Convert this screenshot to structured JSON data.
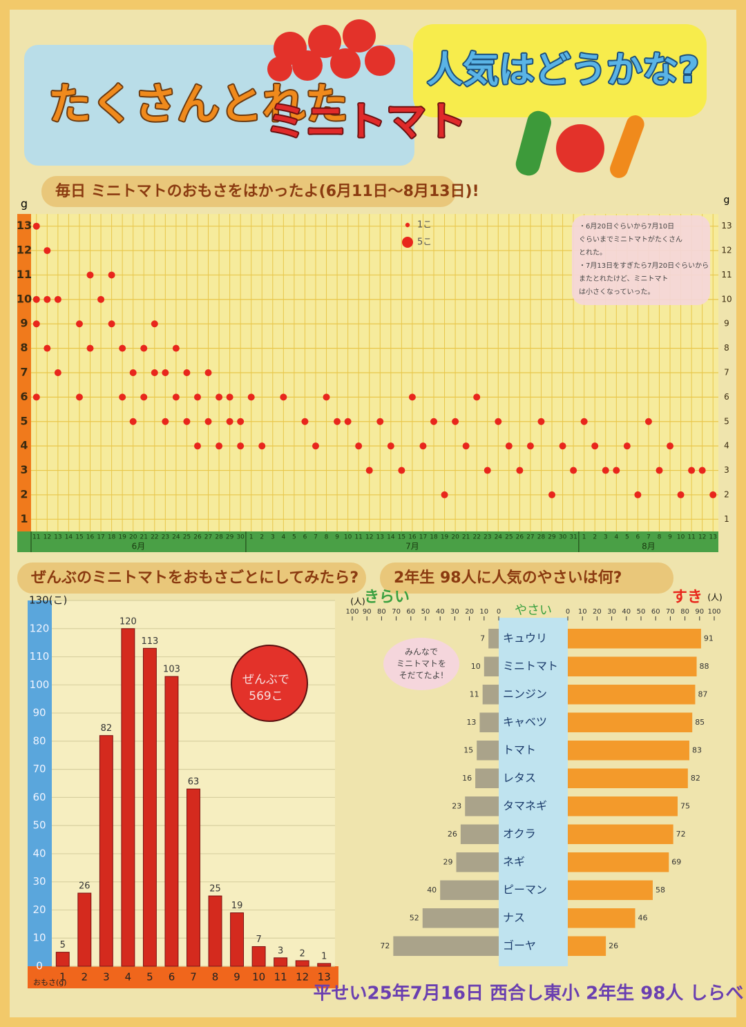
{
  "header": {
    "title1": "たくさんとれた",
    "title2": "ミニトマト",
    "title3": "人気はどうかな?"
  },
  "chart_data": [
    {
      "type": "scatter",
      "title": "毎日 ミニトマトのおもさをはかったよ(6月11日～8月13日)!",
      "y_unit": "g",
      "x": [
        1,
        1,
        1,
        1,
        2,
        2,
        2,
        3,
        3,
        5,
        5,
        6,
        6,
        7,
        8,
        8,
        9,
        9,
        10,
        10,
        11,
        11,
        12,
        12,
        13,
        13,
        14,
        14,
        15,
        15,
        16,
        16,
        17,
        17,
        18,
        18,
        19,
        19,
        20,
        20,
        21,
        22,
        24,
        26,
        27,
        28,
        29,
        30,
        31,
        32,
        33,
        34,
        35,
        36,
        37,
        38,
        39,
        40,
        41,
        42,
        43,
        44,
        45,
        46,
        47,
        48,
        49,
        50,
        51,
        52,
        53,
        54,
        55,
        56,
        57,
        58,
        59,
        60,
        61,
        62,
        63,
        64
      ],
      "y": [
        13,
        10,
        9,
        6,
        12,
        10,
        8,
        10,
        7,
        9,
        6,
        11,
        8,
        10,
        11,
        9,
        8,
        6,
        7,
        5,
        8,
        6,
        9,
        7,
        7,
        5,
        8,
        6,
        7,
        5,
        6,
        4,
        7,
        5,
        6,
        4,
        6,
        5,
        5,
        4,
        6,
        4,
        6,
        5,
        4,
        6,
        5,
        5,
        4,
        3,
        5,
        4,
        3,
        6,
        4,
        5,
        2,
        5,
        4,
        6,
        3,
        5,
        4,
        3,
        4,
        5,
        2,
        4,
        3,
        5,
        4,
        3,
        3,
        4,
        2,
        5,
        3,
        4,
        2,
        3,
        3,
        2
      ],
      "color": "#e8261c",
      "xlim": [
        0.5,
        64.5
      ],
      "xticks": [
        {
          "value": 1,
          "label": "11"
        },
        {
          "value": 2,
          "label": "12"
        },
        {
          "value": 3,
          "label": "13"
        },
        {
          "value": 4,
          "label": "14"
        },
        {
          "value": 5,
          "label": "15"
        },
        {
          "value": 6,
          "label": "16"
        },
        {
          "value": 7,
          "label": "17"
        },
        {
          "value": 8,
          "label": "18"
        },
        {
          "value": 9,
          "label": "19"
        },
        {
          "value": 10,
          "label": "20"
        },
        {
          "value": 11,
          "label": "21"
        },
        {
          "value": 12,
          "label": "22"
        },
        {
          "value": 13,
          "label": "23"
        },
        {
          "value": 14,
          "label": "24"
        },
        {
          "value": 15,
          "label": "25"
        },
        {
          "value": 16,
          "label": "26"
        },
        {
          "value": 17,
          "label": "27"
        },
        {
          "value": 18,
          "label": "28"
        },
        {
          "value": 19,
          "label": "29"
        },
        {
          "value": 20,
          "label": "30"
        },
        {
          "value": 21,
          "label": "1"
        },
        {
          "value": 22,
          "label": "2"
        },
        {
          "value": 23,
          "label": "3"
        },
        {
          "value": 24,
          "label": "4"
        },
        {
          "value": 25,
          "label": "5"
        },
        {
          "value": 26,
          "label": "6"
        },
        {
          "value": 27,
          "label": "7"
        },
        {
          "value": 28,
          "label": "8"
        },
        {
          "value": 29,
          "label": "9"
        },
        {
          "value": 30,
          "label": "10"
        },
        {
          "value": 31,
          "label": "11"
        },
        {
          "value": 32,
          "label": "12"
        },
        {
          "value": 33,
          "label": "13"
        },
        {
          "value": 34,
          "label": "14"
        },
        {
          "value": 35,
          "label": "15"
        },
        {
          "value": 36,
          "label": "16"
        },
        {
          "value": 37,
          "label": "17"
        },
        {
          "value": 38,
          "label": "18"
        },
        {
          "value": 39,
          "label": "19"
        },
        {
          "value": 40,
          "label": "20"
        },
        {
          "value": 41,
          "label": "21"
        },
        {
          "value": 42,
          "label": "22"
        },
        {
          "value": 43,
          "label": "23"
        },
        {
          "value": 44,
          "label": "24"
        },
        {
          "value": 45,
          "label": "25"
        },
        {
          "value": 46,
          "label": "26"
        },
        {
          "value": 47,
          "label": "27"
        },
        {
          "value": 48,
          "label": "28"
        },
        {
          "value": 49,
          "label": "29"
        },
        {
          "value": 50,
          "label": "30"
        },
        {
          "value": 51,
          "label": "31"
        },
        {
          "value": 52,
          "label": "1"
        },
        {
          "value": 53,
          "label": "2"
        },
        {
          "value": 54,
          "label": "3"
        },
        {
          "value": 55,
          "label": "4"
        },
        {
          "value": 56,
          "label": "5"
        },
        {
          "value": 57,
          "label": "6"
        },
        {
          "value": 58,
          "label": "7"
        },
        {
          "value": 59,
          "label": "8"
        },
        {
          "value": 60,
          "label": "9"
        },
        {
          "value": 61,
          "label": "10"
        },
        {
          "value": 62,
          "label": "11"
        },
        {
          "value": 63,
          "label": "12"
        },
        {
          "value": 64,
          "label": "13"
        }
      ],
      "months": [
        {
          "label": "6月",
          "from": 1,
          "to": 20
        },
        {
          "label": "7月",
          "from": 21,
          "to": 51
        },
        {
          "label": "8月",
          "from": 52,
          "to": 64
        }
      ],
      "ylim": [
        0.5,
        13.5
      ],
      "yticks": [
        1,
        2,
        3,
        4,
        5,
        6,
        7,
        8,
        9,
        10,
        11,
        12,
        13
      ],
      "grid": true,
      "legend": [
        {
          "label": "1こ",
          "size": 1
        },
        {
          "label": "5こ",
          "size": 5
        }
      ],
      "note": [
        "・6月20日ぐらいから7月10日",
        "ぐらいまでミニトマトがたくさん",
        "とれた。",
        "・7月13日をすぎたら7月20日ぐらいから",
        "またとれたけど、ミニトマト",
        "は小さくなっていった。"
      ]
    },
    {
      "type": "bar",
      "title": "ぜんぶのミニトマトをおもさごとにしてみたら?",
      "categories": [
        "1",
        "2",
        "3",
        "4",
        "5",
        "6",
        "7",
        "8",
        "9",
        "10",
        "11",
        "12",
        "13"
      ],
      "values": [
        5,
        26,
        82,
        120,
        113,
        103,
        63,
        25,
        19,
        7,
        3,
        2,
        1
      ],
      "color": "#d42a1e",
      "x_label": "おもさ(g)",
      "ylim": [
        0,
        130
      ],
      "yticks": [
        0,
        10,
        20,
        30,
        40,
        50,
        60,
        70,
        80,
        90,
        100,
        110,
        120,
        {
          "value": 130,
          "label": "130(こ)"
        }
      ],
      "grid": true,
      "annotation": [
        "ぜんぶで",
        "569こ"
      ]
    },
    {
      "type": "diverging_bar",
      "title": "2年生 98人に人気のやさいは何?",
      "category_header": "やさい",
      "unit": "(人)",
      "categories": [
        "キュウリ",
        "ミニトマト",
        "ニンジン",
        "キャベツ",
        "トマト",
        "レタス",
        "タマネギ",
        "オクラ",
        "ネギ",
        "ピーマン",
        "ナス",
        "ゴーヤ"
      ],
      "series": [
        {
          "name": "きらい",
          "color": "#aaa38a",
          "side": "left",
          "values": [
            7,
            10,
            11,
            13,
            15,
            16,
            23,
            26,
            29,
            40,
            52,
            72
          ]
        },
        {
          "name": "すき",
          "color": "#f39a2b",
          "side": "right",
          "values": [
            91,
            88,
            87,
            85,
            83,
            82,
            75,
            72,
            69,
            58,
            46,
            26
          ]
        }
      ],
      "xlim": [
        0,
        100
      ],
      "xticks": [
        0,
        10,
        20,
        30,
        40,
        50,
        60,
        70,
        80,
        90,
        100
      ],
      "annotation": [
        "みんなで",
        "ミニトマトを",
        "そだてたよ!"
      ]
    }
  ],
  "footer": "平せい25年7月16日 西合し東小 2年生 98人 しらべ"
}
